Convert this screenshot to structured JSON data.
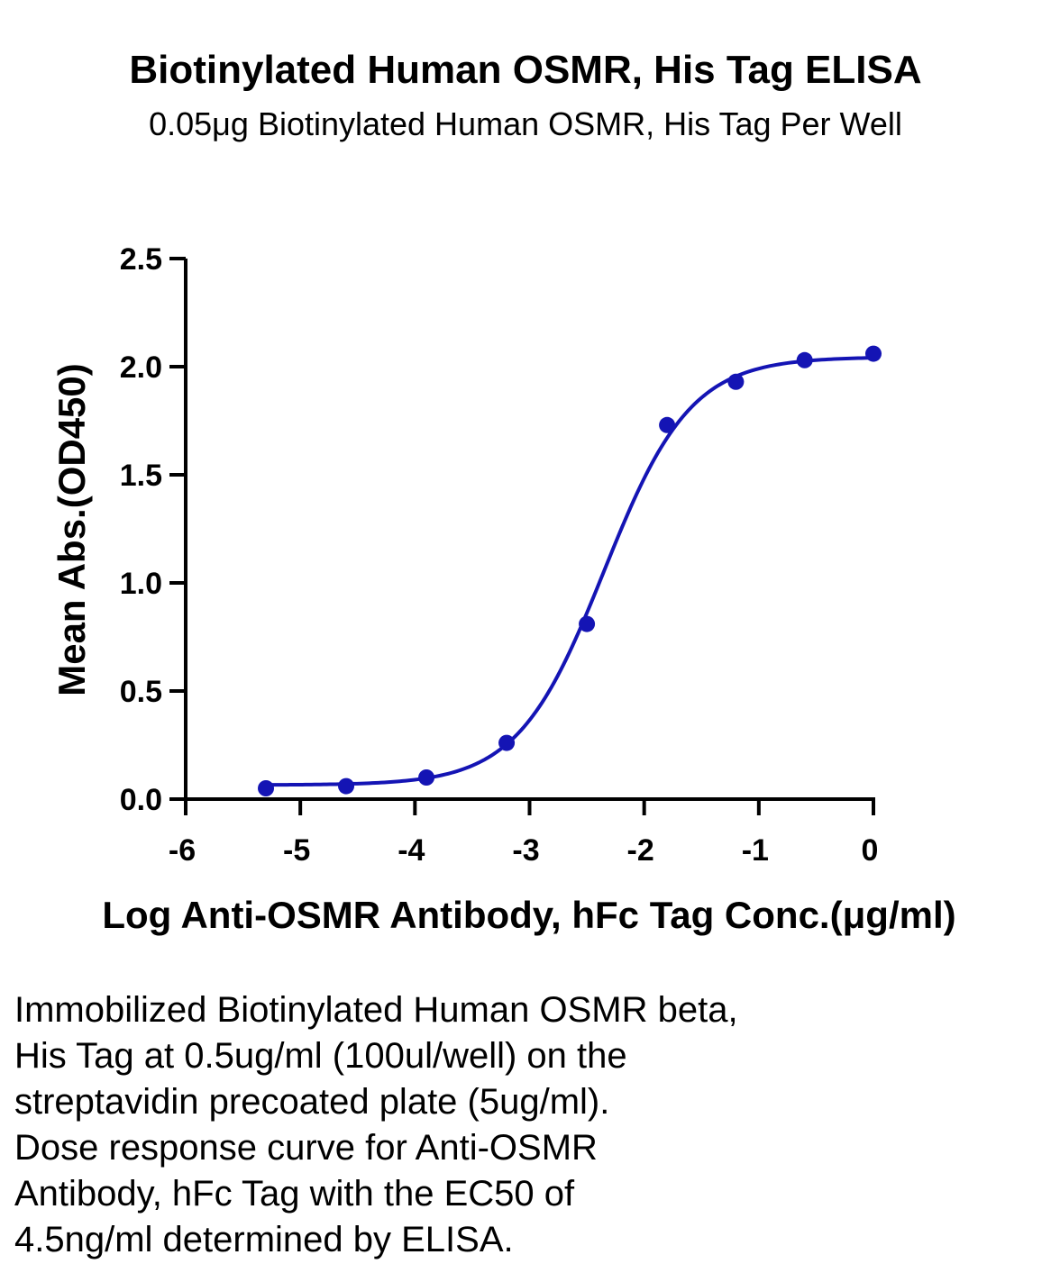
{
  "chart_data": {
    "type": "scatter",
    "title": "Biotinylated Human OSMR, His Tag ELISA",
    "subtitle": "0.05μg Biotinylated Human OSMR, His Tag Per Well",
    "xlabel": "Log Anti-OSMR Antibody, hFc Tag Conc.(μg/ml)",
    "ylabel": "Mean Abs.(OD450)",
    "xlim": [
      -6,
      0
    ],
    "ylim": [
      0,
      2.5
    ],
    "x_ticks": [
      "-6",
      "-5",
      "-4",
      "-3",
      "-2",
      "-1",
      "0"
    ],
    "y_ticks": [
      "0.0",
      "0.5",
      "1.0",
      "1.5",
      "2.0",
      "2.5"
    ],
    "x": [
      -5.3,
      -4.6,
      -3.9,
      -3.2,
      -2.5,
      -1.8,
      -1.2,
      -0.6,
      0.0
    ],
    "y": [
      0.05,
      0.06,
      0.1,
      0.26,
      0.81,
      1.73,
      1.93,
      2.03,
      2.06
    ],
    "fit": {
      "model": "4PL",
      "bottom": 0.065,
      "top": 2.045,
      "log_ec50": -2.35,
      "hill_slope": 1.15
    },
    "color": "#1414b4",
    "grid": false
  },
  "caption": {
    "lines": [
      "Immobilized Biotinylated Human OSMR beta,",
      "His Tag at 0.5ug/ml (100ul/well) on the",
      "streptavidin precoated plate (5ug/ml).",
      "Dose response curve for Anti-OSMR",
      "Antibody, hFc Tag with the EC50 of",
      "4.5ng/ml determined by ELISA."
    ]
  }
}
